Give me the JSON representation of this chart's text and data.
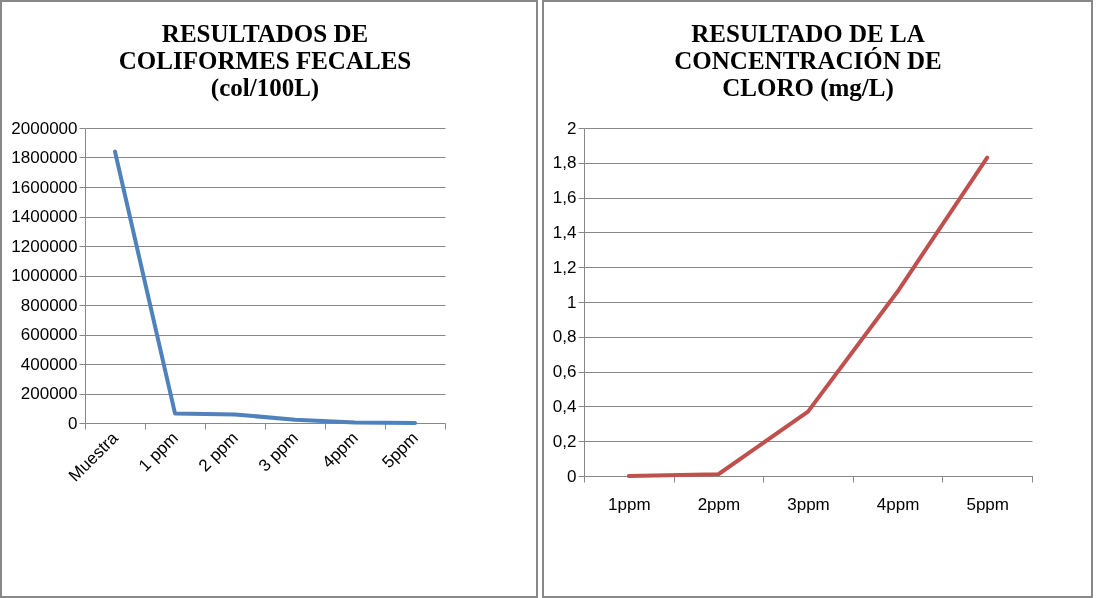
{
  "chart_data": [
    {
      "type": "line",
      "title": "RESULTADOS DE COLIFORMES FECALES (col/100L)",
      "categories": [
        "Muestra",
        "1 ppm",
        "2 ppm",
        "3 ppm",
        "4ppm",
        "5ppm"
      ],
      "series": [
        {
          "color": "#4f81bd",
          "values": [
            1840000,
            65000,
            58000,
            22000,
            3000,
            0
          ]
        }
      ],
      "ylim": [
        0,
        2000000
      ],
      "yticks": [
        0,
        200000,
        400000,
        600000,
        800000,
        1000000,
        1200000,
        1400000,
        1600000,
        1800000,
        2000000
      ],
      "grid": "y"
    },
    {
      "type": "line",
      "title": "RESULTADO DE LA CONCENTRACIÓN DE CLORO (mg/L)",
      "categories": [
        "1ppm",
        "2ppm",
        "3ppm",
        "4ppm",
        "5ppm"
      ],
      "series": [
        {
          "color": "#c0504d",
          "values": [
            0,
            0.01,
            0.37,
            1.06,
            1.83
          ]
        }
      ],
      "ylim": [
        0,
        2
      ],
      "yticks": [
        0,
        {
          "value": 0.2,
          "label": "0,2"
        },
        {
          "value": 0.4,
          "label": "0,4"
        },
        {
          "value": 0.6,
          "label": "0,6"
        },
        {
          "value": 0.8,
          "label": "0,8"
        },
        1,
        {
          "value": 1.2,
          "label": "1,2"
        },
        {
          "value": 1.4,
          "label": "1,4"
        },
        {
          "value": 1.6,
          "label": "1,6"
        },
        {
          "value": 1.8,
          "label": "1,8"
        },
        2
      ],
      "grid": "y"
    }
  ]
}
